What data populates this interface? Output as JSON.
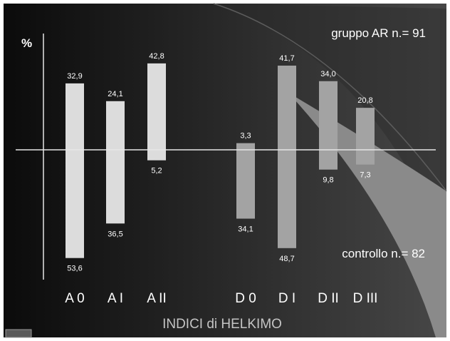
{
  "chart_data": {
    "type": "bar",
    "title": "",
    "xlabel": "INDICI di HELKIMO",
    "ylabel": "%",
    "categories": [
      "A 0",
      "A I",
      "A II",
      "D 0",
      "D I",
      "D II",
      "D III"
    ],
    "series": [
      {
        "name": "gruppo AR n.= 91",
        "values": [
          32.9,
          24.1,
          42.8,
          3.3,
          41.7,
          34.0,
          20.8
        ]
      },
      {
        "name": "controllo n.= 82",
        "values": [
          53.6,
          36.5,
          5.2,
          34.1,
          48.7,
          9.8,
          7.3
        ]
      }
    ],
    "up_labels": [
      "32,9",
      "24,1",
      "42,8",
      "3,3",
      "41,7",
      "34,0",
      "20,8"
    ],
    "down_labels": [
      "53,6",
      "36,5",
      "5,2",
      "34,1",
      "48,7",
      "9,8",
      "7,3"
    ],
    "bar_colors": [
      "#dcdcdc",
      "#dcdcdc",
      "#dcdcdc",
      "#a3a3a3",
      "#a3a3a3",
      "#a3a3a3",
      "#a3a3a3"
    ],
    "legend_placement": "top-right (above axis) / bottom-right (below axis)",
    "grid": false
  },
  "colors": {
    "background_dark": "#0e0e0e",
    "background_light": "#3c3c3c",
    "arc_region": "#8a8a8a",
    "axis": "#e6e6e6"
  }
}
